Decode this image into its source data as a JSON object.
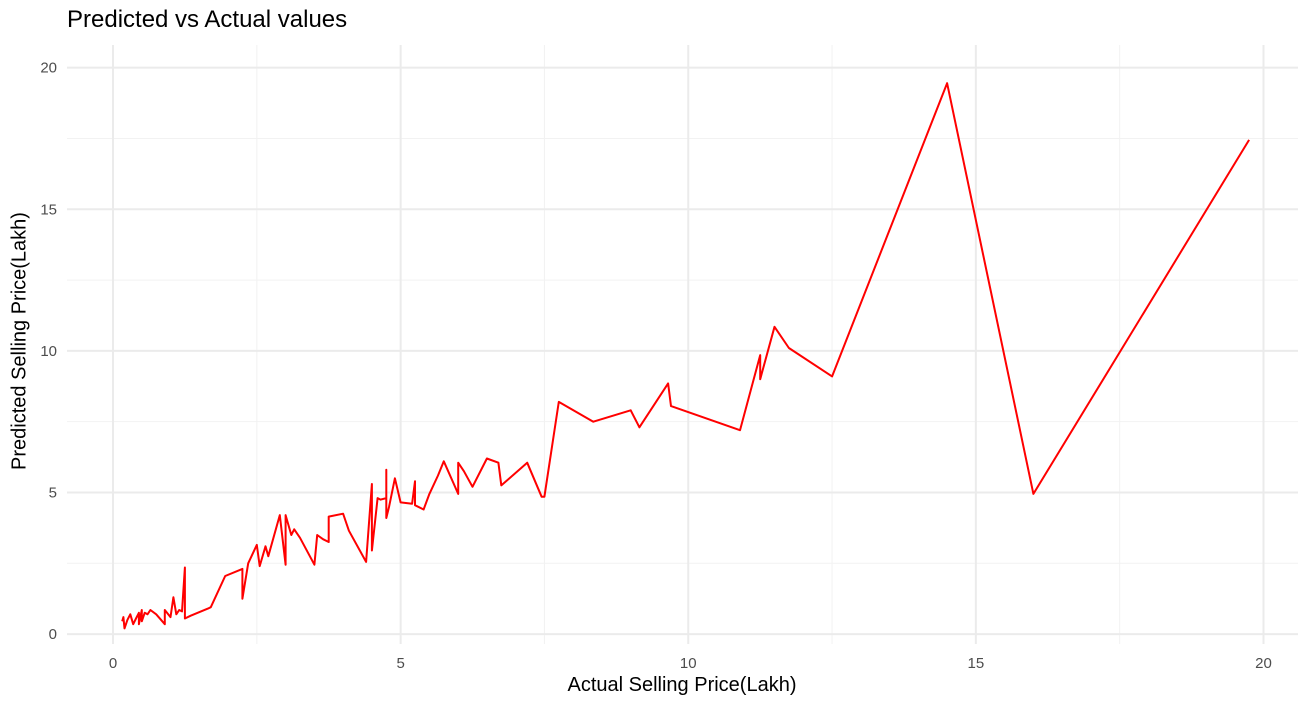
{
  "chart_data": {
    "type": "line",
    "title": "Predicted vs Actual values",
    "xlabel": "Actual Selling Price(Lakh)",
    "ylabel": "Predicted Selling Price(Lakh)",
    "xlim": [
      -0.8,
      20.6
    ],
    "ylim": [
      -0.35,
      20.8
    ],
    "x_ticks": [
      0,
      5,
      10,
      15,
      20
    ],
    "y_ticks": [
      0,
      5,
      10,
      15,
      20
    ],
    "x_tick_labels": [
      "0",
      "5",
      "10",
      "15",
      "20"
    ],
    "y_tick_labels": [
      "0",
      "5",
      "10",
      "15",
      "20"
    ],
    "grid": true,
    "line_color": "#ff0000",
    "series": [
      {
        "x": [
          0.16,
          0.18,
          0.2,
          0.25,
          0.3,
          0.35,
          0.4,
          0.45,
          0.45,
          0.5,
          0.5,
          0.55,
          0.6,
          0.65,
          0.75,
          0.9,
          0.9,
          1.0,
          1.05,
          1.1,
          1.15,
          1.2,
          1.25,
          1.25,
          1.35,
          1.65,
          1.7,
          1.95,
          2.25,
          2.25,
          2.35,
          2.5,
          2.55,
          2.65,
          2.7,
          2.9,
          3.0,
          3.0,
          3.1,
          3.15,
          3.25,
          3.5,
          3.55,
          3.65,
          3.75,
          3.75,
          4.0,
          4.1,
          4.4,
          4.5,
          4.5,
          4.6,
          4.65,
          4.75,
          4.75,
          4.75,
          4.8,
          4.9,
          5.0,
          5.2,
          5.25,
          5.25,
          5.4,
          5.5,
          5.65,
          5.75,
          6.0,
          6.0,
          6.1,
          6.25,
          6.5,
          6.7,
          6.75,
          7.2,
          7.45,
          7.5,
          7.75,
          8.35,
          9.0,
          9.15,
          9.65,
          9.7,
          10.9,
          11.25,
          11.25,
          11.5,
          11.75,
          12.5,
          14.5,
          16.0,
          19.75
        ],
        "y": [
          0.45,
          0.6,
          0.2,
          0.5,
          0.7,
          0.35,
          0.55,
          0.75,
          0.35,
          0.85,
          0.45,
          0.75,
          0.7,
          0.85,
          0.7,
          0.35,
          0.85,
          0.6,
          1.3,
          0.7,
          0.85,
          0.8,
          2.35,
          0.55,
          0.65,
          0.9,
          0.95,
          2.05,
          2.3,
          1.25,
          2.5,
          3.15,
          2.4,
          3.1,
          2.75,
          4.2,
          2.45,
          4.2,
          3.5,
          3.7,
          3.4,
          2.45,
          3.5,
          3.35,
          3.25,
          4.15,
          4.25,
          3.65,
          2.55,
          5.3,
          2.95,
          4.8,
          4.75,
          4.8,
          5.8,
          4.1,
          4.5,
          5.5,
          4.65,
          4.6,
          5.4,
          4.55,
          4.4,
          4.95,
          5.6,
          6.1,
          4.95,
          6.05,
          5.75,
          5.2,
          6.2,
          6.05,
          5.25,
          6.05,
          4.85,
          4.85,
          8.2,
          7.5,
          7.9,
          7.3,
          8.85,
          8.05,
          7.2,
          9.85,
          9.0,
          10.85,
          10.1,
          9.1,
          19.45,
          4.95,
          17.45
        ]
      }
    ]
  }
}
